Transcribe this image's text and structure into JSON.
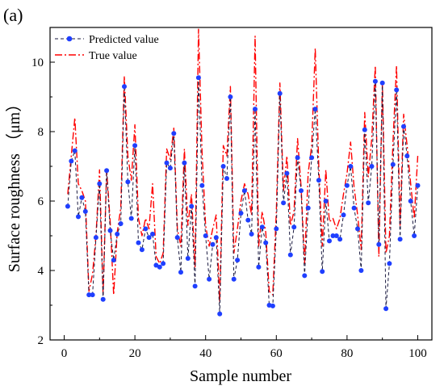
{
  "panel_label": "(a)",
  "chart_data": {
    "type": "line",
    "title": "",
    "xlabel": "Sample number",
    "ylabel": "Surface roughness （μm）",
    "xlim": [
      -4,
      104
    ],
    "ylim": [
      2,
      11
    ],
    "x_ticks": [
      0,
      20,
      40,
      60,
      80,
      100
    ],
    "y_ticks": [
      2,
      4,
      6,
      8,
      10
    ],
    "grid": false,
    "legend_position": "top-left",
    "x": [
      1,
      2,
      3,
      4,
      5,
      6,
      7,
      8,
      9,
      10,
      11,
      12,
      13,
      14,
      15,
      16,
      17,
      18,
      19,
      20,
      21,
      22,
      23,
      24,
      25,
      26,
      27,
      28,
      29,
      30,
      31,
      32,
      33,
      34,
      35,
      36,
      37,
      38,
      39,
      40,
      41,
      42,
      43,
      44,
      45,
      46,
      47,
      48,
      49,
      50,
      51,
      52,
      53,
      54,
      55,
      56,
      57,
      58,
      59,
      60,
      61,
      62,
      63,
      64,
      65,
      66,
      67,
      68,
      69,
      70,
      71,
      72,
      73,
      74,
      75,
      76,
      77,
      78,
      79,
      80,
      81,
      82,
      83,
      84,
      85,
      86,
      87,
      88,
      89,
      90,
      91,
      92,
      93,
      94,
      95,
      96,
      97,
      98,
      99,
      100
    ],
    "series": [
      {
        "name": "Predicted value",
        "color": "#1f3fff",
        "line_color": "#1a1a40",
        "line_style": "dashed",
        "marker": "circle",
        "values": [
          5.85,
          7.15,
          7.45,
          5.55,
          6.1,
          5.7,
          3.3,
          3.3,
          4.95,
          6.5,
          3.17,
          6.88,
          5.15,
          4.3,
          5.05,
          5.35,
          9.3,
          6.55,
          5.5,
          7.6,
          4.8,
          4.6,
          5.2,
          4.95,
          5.05,
          4.15,
          4.1,
          4.2,
          7.1,
          6.95,
          7.95,
          4.95,
          3.95,
          7.1,
          4.35,
          5.85,
          3.55,
          9.55,
          6.45,
          5.0,
          3.75,
          4.75,
          4.95,
          2.75,
          7.0,
          6.65,
          9.0,
          3.75,
          4.3,
          5.65,
          6.3,
          5.45,
          5.05,
          8.65,
          4.1,
          5.25,
          4.8,
          3.0,
          2.98,
          5.2,
          9.1,
          5.95,
          6.8,
          4.45,
          5.25,
          7.25,
          6.3,
          3.85,
          5.8,
          7.25,
          8.65,
          6.6,
          3.97,
          6.0,
          4.85,
          5.0,
          5.0,
          4.9,
          5.6,
          6.45,
          7.0,
          5.8,
          5.2,
          4.0,
          8.05,
          5.95,
          7.0,
          9.45,
          4.75,
          9.4,
          2.9,
          4.2,
          7.05,
          9.2,
          4.9,
          8.15,
          7.3,
          6.0,
          5.0,
          6.45
        ]
      },
      {
        "name": "True value",
        "color": "#ff0000",
        "line_style": "dash-dot",
        "marker": "none",
        "values": [
          6.2,
          7.3,
          8.4,
          6.5,
          6.3,
          6.0,
          3.4,
          3.9,
          5.0,
          6.9,
          3.3,
          6.9,
          5.4,
          3.3,
          5.1,
          5.8,
          9.6,
          7.3,
          6.6,
          8.2,
          5.5,
          5.0,
          5.5,
          5.2,
          6.5,
          4.4,
          4.2,
          4.5,
          7.5,
          7.2,
          8.1,
          5.2,
          4.7,
          7.5,
          5.3,
          6.2,
          4.1,
          10.95,
          7.4,
          5.3,
          4.7,
          5.2,
          5.6,
          3.1,
          7.6,
          7.3,
          9.3,
          4.5,
          5.2,
          6.0,
          6.5,
          6.2,
          5.6,
          10.75,
          4.7,
          5.7,
          5.1,
          3.4,
          3.3,
          5.7,
          9.4,
          6.3,
          7.3,
          5.3,
          5.7,
          7.8,
          6.4,
          4.2,
          6.8,
          7.6,
          10.4,
          7.0,
          4.7,
          6.9,
          5.4,
          5.5,
          5.2,
          5.5,
          6.2,
          6.8,
          7.7,
          6.4,
          5.6,
          4.6,
          8.55,
          6.7,
          7.8,
          9.9,
          4.4,
          9.4,
          4.5,
          5.0,
          7.7,
          9.9,
          5.3,
          8.5,
          7.6,
          6.5,
          5.5,
          7.3
        ]
      }
    ]
  }
}
